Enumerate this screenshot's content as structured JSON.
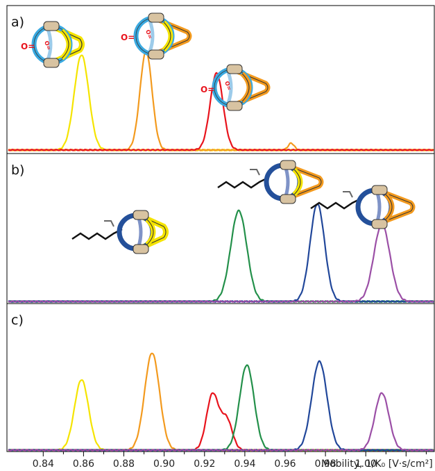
{
  "chart_data": {
    "type": "line",
    "xlabel": "Mobility, 1/K₀ [V·s/cm²]",
    "xticks": [
      "0.84",
      "0.86",
      "0.88",
      "0.90",
      "0.92",
      "0.94",
      "0.96",
      "0.98",
      "1.00"
    ],
    "xlim": [
      0.822,
      1.034
    ],
    "panels": [
      {
        "label": "a)",
        "series": [
          {
            "color": "#f5e400",
            "peaks": [
              {
                "x": 0.859,
                "h": 0.83,
                "w": 0.0036
              }
            ]
          },
          {
            "color": "#f39a1e",
            "peaks": [
              {
                "x": 0.891,
                "h": 0.86,
                "w": 0.003
              },
              {
                "x": 0.963,
                "h": 0.06,
                "w": 0.0015
              }
            ]
          },
          {
            "color": "#e8131c",
            "peaks": [
              {
                "x": 0.926,
                "h": 0.67,
                "w": 0.0032
              }
            ],
            "baseline": 0.04
          }
        ]
      },
      {
        "label": "b)",
        "series": [
          {
            "color": "#23904a",
            "peaks": [
              {
                "x": 0.937,
                "h": 0.67,
                "w": 0.004
              }
            ]
          },
          {
            "color": "#21479a",
            "peaks": [
              {
                "x": 0.976,
                "h": 0.72,
                "w": 0.0036
              }
            ]
          },
          {
            "color": "#9b4fa6",
            "peaks": [
              {
                "x": 1.008,
                "h": 0.57,
                "w": 0.004
              }
            ]
          }
        ]
      },
      {
        "label": "c)",
        "series": [
          {
            "color": "#f5e400",
            "peaks": [
              {
                "x": 0.859,
                "h": 0.58,
                "w": 0.0035
              }
            ]
          },
          {
            "color": "#f39a1e",
            "peaks": [
              {
                "x": 0.894,
                "h": 0.8,
                "w": 0.0037
              }
            ]
          },
          {
            "color": "#e8131c",
            "peaks": [
              {
                "x": 0.924,
                "h": 0.46,
                "w": 0.003
              },
              {
                "x": 0.931,
                "h": 0.25,
                "w": 0.0028
              }
            ]
          },
          {
            "color": "#23904a",
            "peaks": [
              {
                "x": 0.941,
                "h": 0.7,
                "w": 0.0036
              }
            ]
          },
          {
            "color": "#21479a",
            "peaks": [
              {
                "x": 0.977,
                "h": 0.73,
                "w": 0.0038
              }
            ]
          },
          {
            "color": "#9b4fa6",
            "peaks": [
              {
                "x": 1.008,
                "h": 0.47,
                "w": 0.0035
              }
            ]
          }
        ]
      }
    ],
    "annotations": {
      "carbonyl": "O="
    }
  },
  "colors": {
    "ring_blue": "#3aa9e0",
    "ring_dark": "#24509a",
    "ring_inner": "#8fbde0",
    "ring_inner_dark": "#7f93c7",
    "bead": "#d8c3a1",
    "yellow": "#f5e400",
    "orange": "#f39a1e",
    "red": "#e8131c"
  }
}
